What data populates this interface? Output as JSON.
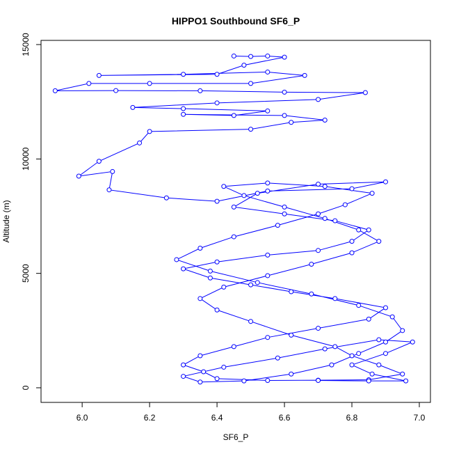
{
  "chart_data": {
    "type": "line",
    "markers": true,
    "title": "HIPPO1 Southbound SF6_P",
    "x_label": "SF6_P",
    "y_label": "Altitude (m)",
    "color": "#0000ff",
    "x": [
      6.45,
      6.5,
      6.55,
      6.6,
      6.48,
      6.4,
      6.05,
      6.3,
      6.55,
      6.66,
      6.5,
      6.2,
      6.02,
      5.92,
      6.1,
      6.35,
      6.6,
      6.84,
      6.7,
      6.4,
      6.15,
      6.3,
      6.55,
      6.45,
      6.3,
      6.6,
      6.72,
      6.62,
      6.5,
      6.2,
      6.17,
      6.05,
      5.99,
      6.09,
      6.08,
      6.25,
      6.4,
      6.55,
      6.8,
      6.9,
      6.7,
      6.52,
      6.45,
      6.6,
      6.75,
      6.85,
      6.8,
      6.7,
      6.55,
      6.4,
      6.3,
      6.38,
      6.5,
      6.62,
      6.75,
      6.9,
      6.85,
      6.7,
      6.55,
      6.45,
      6.35,
      6.3,
      6.36,
      6.4,
      6.55,
      6.7,
      6.85,
      6.95,
      6.88,
      6.8,
      6.75,
      6.62,
      6.5,
      6.4,
      6.35,
      6.42,
      6.55,
      6.68,
      6.8,
      6.88,
      6.82,
      6.72,
      6.6,
      6.48,
      6.42,
      6.55,
      6.72,
      6.86,
      6.78,
      6.7,
      6.58,
      6.45,
      6.35,
      6.28,
      6.38,
      6.52,
      6.68,
      6.82,
      6.92,
      6.95,
      6.9,
      6.82,
      6.74,
      6.62,
      6.48,
      6.35,
      6.3,
      6.42,
      6.58,
      6.72,
      6.88,
      6.98,
      6.9,
      6.8,
      6.86,
      6.96,
      6.85,
      6.7
    ],
    "values": [
      14500,
      14480,
      14500,
      14450,
      14100,
      13700,
      13650,
      13700,
      13800,
      13650,
      13300,
      13300,
      13300,
      12980,
      12990,
      12980,
      12920,
      12900,
      12600,
      12450,
      12250,
      12200,
      12100,
      11900,
      11950,
      11900,
      11700,
      11600,
      11300,
      11200,
      10700,
      9900,
      9250,
      9450,
      8650,
      8300,
      8150,
      8600,
      8700,
      9000,
      8900,
      8500,
      7900,
      7600,
      7300,
      6900,
      6400,
      6000,
      5800,
      5500,
      5200,
      4800,
      4500,
      4200,
      3900,
      3500,
      3000,
      2600,
      2200,
      1800,
      1400,
      1000,
      700,
      400,
      320,
      330,
      350,
      600,
      1000,
      1400,
      1800,
      2300,
      2900,
      3400,
      3900,
      4400,
      4900,
      5400,
      5900,
      6400,
      6900,
      7400,
      7900,
      8400,
      8800,
      8950,
      8800,
      8500,
      8000,
      7600,
      7100,
      6600,
      6100,
      5600,
      5100,
      4600,
      4100,
      3600,
      3100,
      2500,
      2000,
      1500,
      1000,
      600,
      300,
      250,
      500,
      900,
      1300,
      1700,
      2100,
      2000,
      1500,
      1000,
      600,
      300,
      300,
      320
    ],
    "xlim": [
      5.878,
      7.033
    ],
    "ylim": [
      -639,
      15183
    ],
    "xticks": [
      {
        "value": 6.0,
        "label": "6.0"
      },
      {
        "value": 6.2,
        "label": "6.2"
      },
      {
        "value": 6.4,
        "label": "6.4"
      },
      {
        "value": 6.6,
        "label": "6.6"
      },
      {
        "value": 6.8,
        "label": "6.8"
      },
      {
        "value": 7.0,
        "label": "7.0"
      }
    ],
    "yticks": [
      0,
      5000,
      10000,
      15000
    ]
  }
}
